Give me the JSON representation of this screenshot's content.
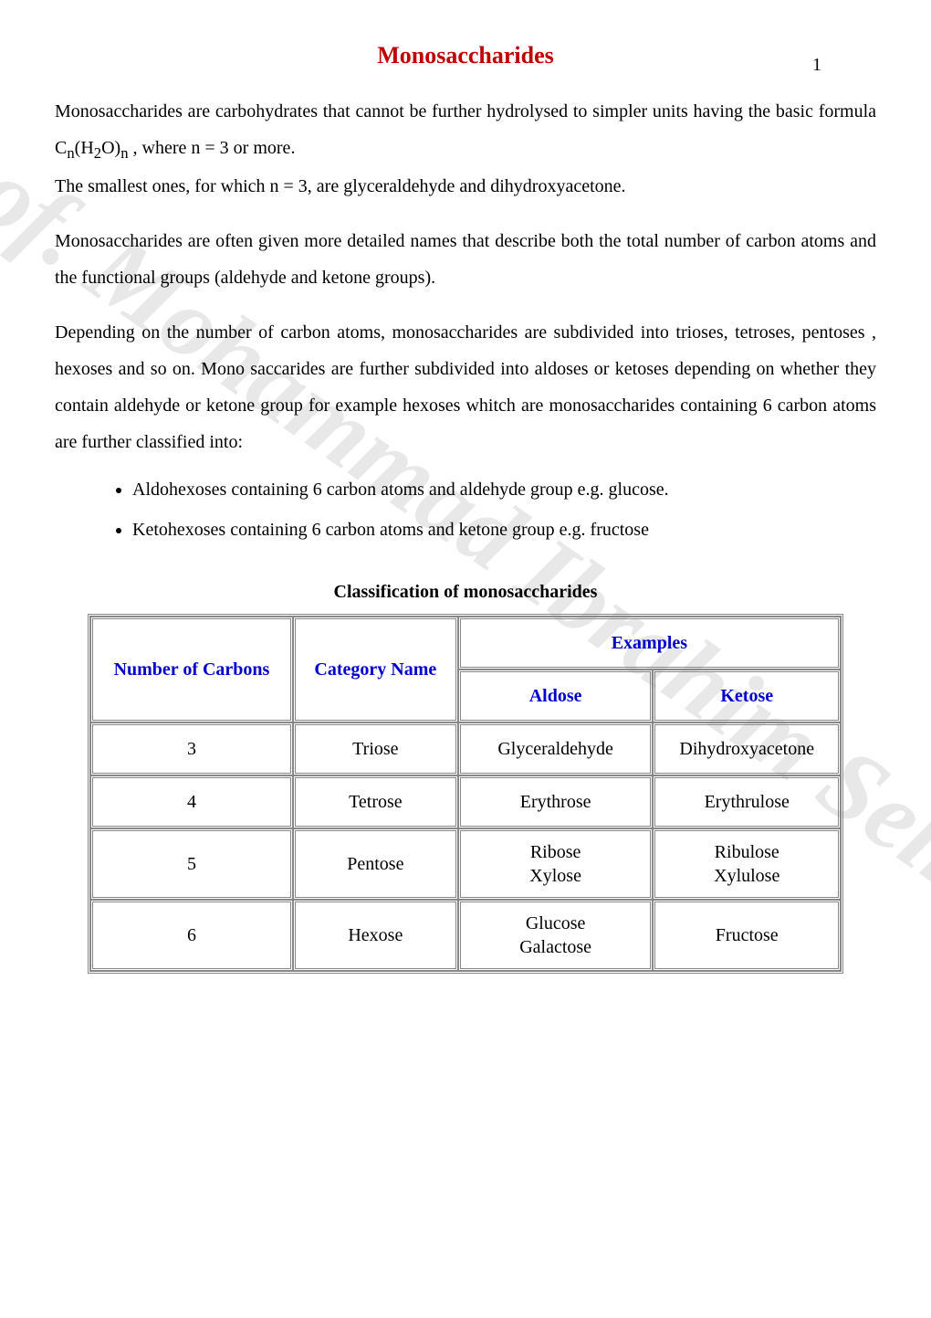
{
  "page_number": "1",
  "title": "Monosaccharides",
  "watermark": "Prof. Mohammad Ibrahim Selim",
  "paragraphs": {
    "p1_part1": "Monosaccharides are carbohydrates that cannot be further hydrolysed to simpler units having the basic formula C",
    "p1_sub1": "n",
    "p1_part2": "(H",
    "p1_sub2": "2",
    "p1_part3": "O)",
    "p1_sub3": "n",
    "p1_part4": " , where n = 3 or more.",
    "p1b": "The smallest ones, for which n = 3, are glyceraldehyde and dihydroxyacetone.",
    "p2": "Monosaccharides are often given more detailed names that describe both the total number of carbon atoms and the functional groups (aldehyde and ketone groups).",
    "p3": "Depending on the number of carbon atoms, monosaccharides are subdivided into trioses, tetroses, pentoses , hexoses and so on. Mono saccarides are further subdivided into aldoses or ketoses depending on whether they contain aldehyde or ketone group for example hexoses whitch are monosaccharides containing 6 carbon atoms are further classified into:"
  },
  "bullets": {
    "b1": "Aldohexoses containing 6 carbon atoms and aldehyde group e.g. glucose.",
    "b2": "Ketohexoses containing  6 carbon atoms and ketone group e.g. fructose"
  },
  "table": {
    "caption": "Classification of  monosaccharides",
    "headers": {
      "carbons": "Number of Carbons",
      "category": "Category Name",
      "examples": "Examples",
      "aldose": "Aldose",
      "ketose": "Ketose"
    },
    "rows": [
      {
        "carbons": "3",
        "category": "Triose",
        "aldose": "Glyceraldehyde",
        "ketose": "Dihydroxyacetone"
      },
      {
        "carbons": "4",
        "category": "Tetrose",
        "aldose": "Erythrose",
        "ketose": "Erythrulose"
      },
      {
        "carbons": "5",
        "category": "Pentose",
        "aldose": "Ribose\nXylose",
        "ketose": "Ribulose\nXylulose"
      },
      {
        "carbons": "6",
        "category": "Hexose",
        "aldose": "Glucose\nGalactose",
        "ketose": "Fructose"
      }
    ]
  }
}
